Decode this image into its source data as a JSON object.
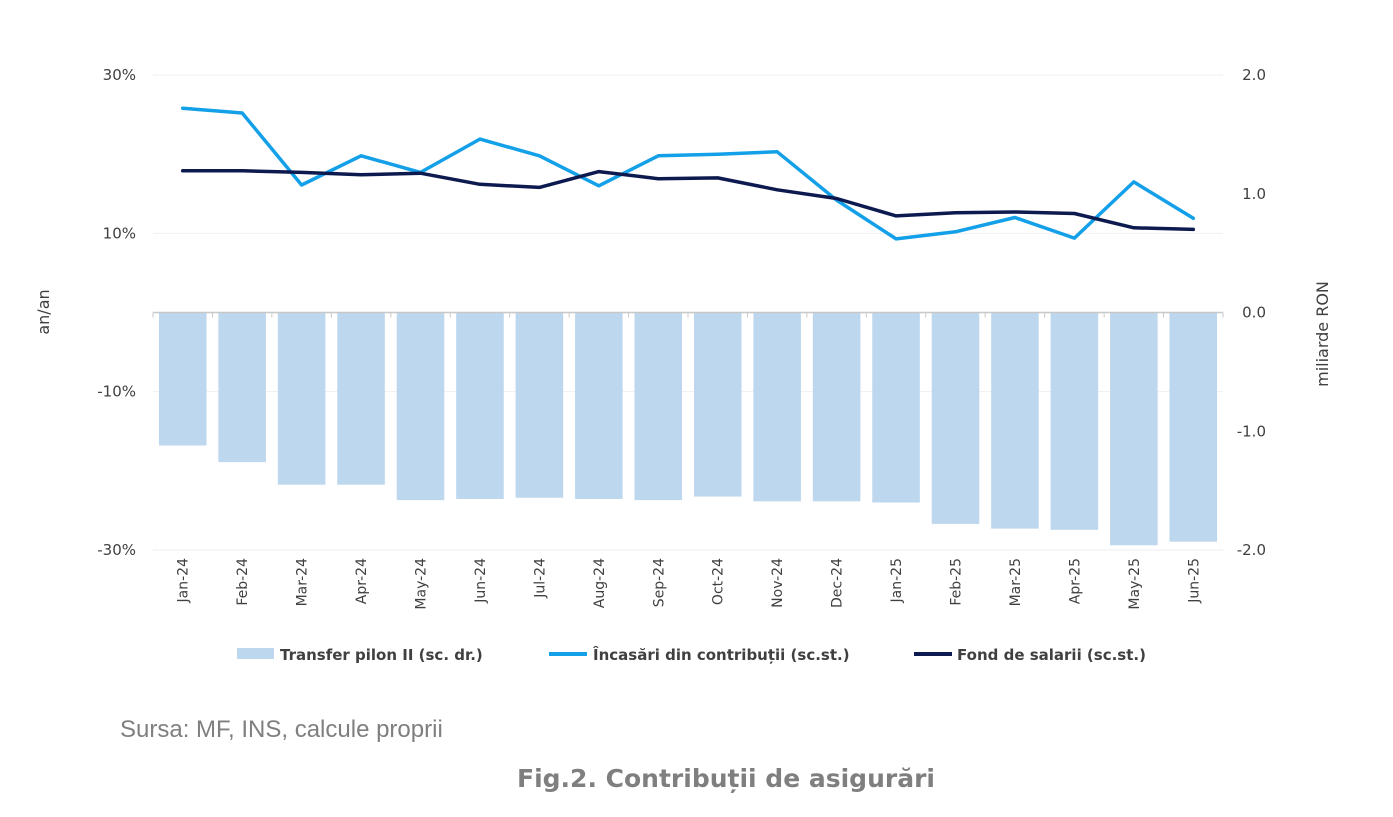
{
  "chart_data": {
    "type": "bar",
    "categories": [
      "Jan-24",
      "Feb-24",
      "Mar-24",
      "Apr-24",
      "May-24",
      "Jun-24",
      "Jul-24",
      "Aug-24",
      "Sep-24",
      "Oct-24",
      "Nov-24",
      "Dec-24",
      "Jan-25",
      "Feb-25",
      "Mar-25",
      "Apr-25",
      "May-25",
      "Jun-25"
    ],
    "y_left": {
      "label": "an/an",
      "ticks": [
        "30%",
        "10%",
        "-10%",
        "-30%"
      ],
      "tick_values": [
        30,
        10,
        -10,
        -30
      ],
      "range": [
        -30,
        30
      ]
    },
    "y_right": {
      "label": "miliarde RON",
      "ticks": [
        "2.0",
        "1.0",
        "0.0",
        "-1.0",
        "-2.0"
      ],
      "tick_values": [
        2,
        1,
        0,
        -1,
        -2
      ],
      "range": [
        -2,
        2
      ]
    },
    "grid": true,
    "legend_position": "bottom",
    "series": [
      {
        "name": "Transfer pilon II (sc. dr.)",
        "type": "bar",
        "axis": "right",
        "color": "#bdd7ee",
        "values": [
          -1.12,
          -1.26,
          -1.45,
          -1.45,
          -1.58,
          -1.57,
          -1.56,
          -1.57,
          -1.58,
          -1.55,
          -1.59,
          -1.59,
          -1.6,
          -1.78,
          -1.82,
          -1.83,
          -1.96,
          -1.93
        ]
      },
      {
        "name": "Încasări din contribuții (sc.st.)",
        "type": "line",
        "axis": "left",
        "color": "#13a0e8",
        "values": [
          25.8,
          25.2,
          16.1,
          19.8,
          17.7,
          21.9,
          19.8,
          16.0,
          19.8,
          20.0,
          20.3,
          14.2,
          9.3,
          10.2,
          12.0,
          9.4,
          16.5,
          11.9
        ]
      },
      {
        "name": "Fond de salarii (sc.st.)",
        "type": "line",
        "axis": "left",
        "color": "#0d1a4f",
        "values": [
          17.9,
          17.9,
          17.7,
          17.4,
          17.6,
          16.2,
          15.8,
          17.8,
          16.9,
          17.0,
          15.5,
          14.4,
          12.2,
          12.6,
          12.7,
          12.5,
          10.7,
          10.5
        ]
      }
    ]
  },
  "source": "Sursa: MF, INS, calcule proprii",
  "figure_title": "Fig.2. Contribuții de asigurări"
}
